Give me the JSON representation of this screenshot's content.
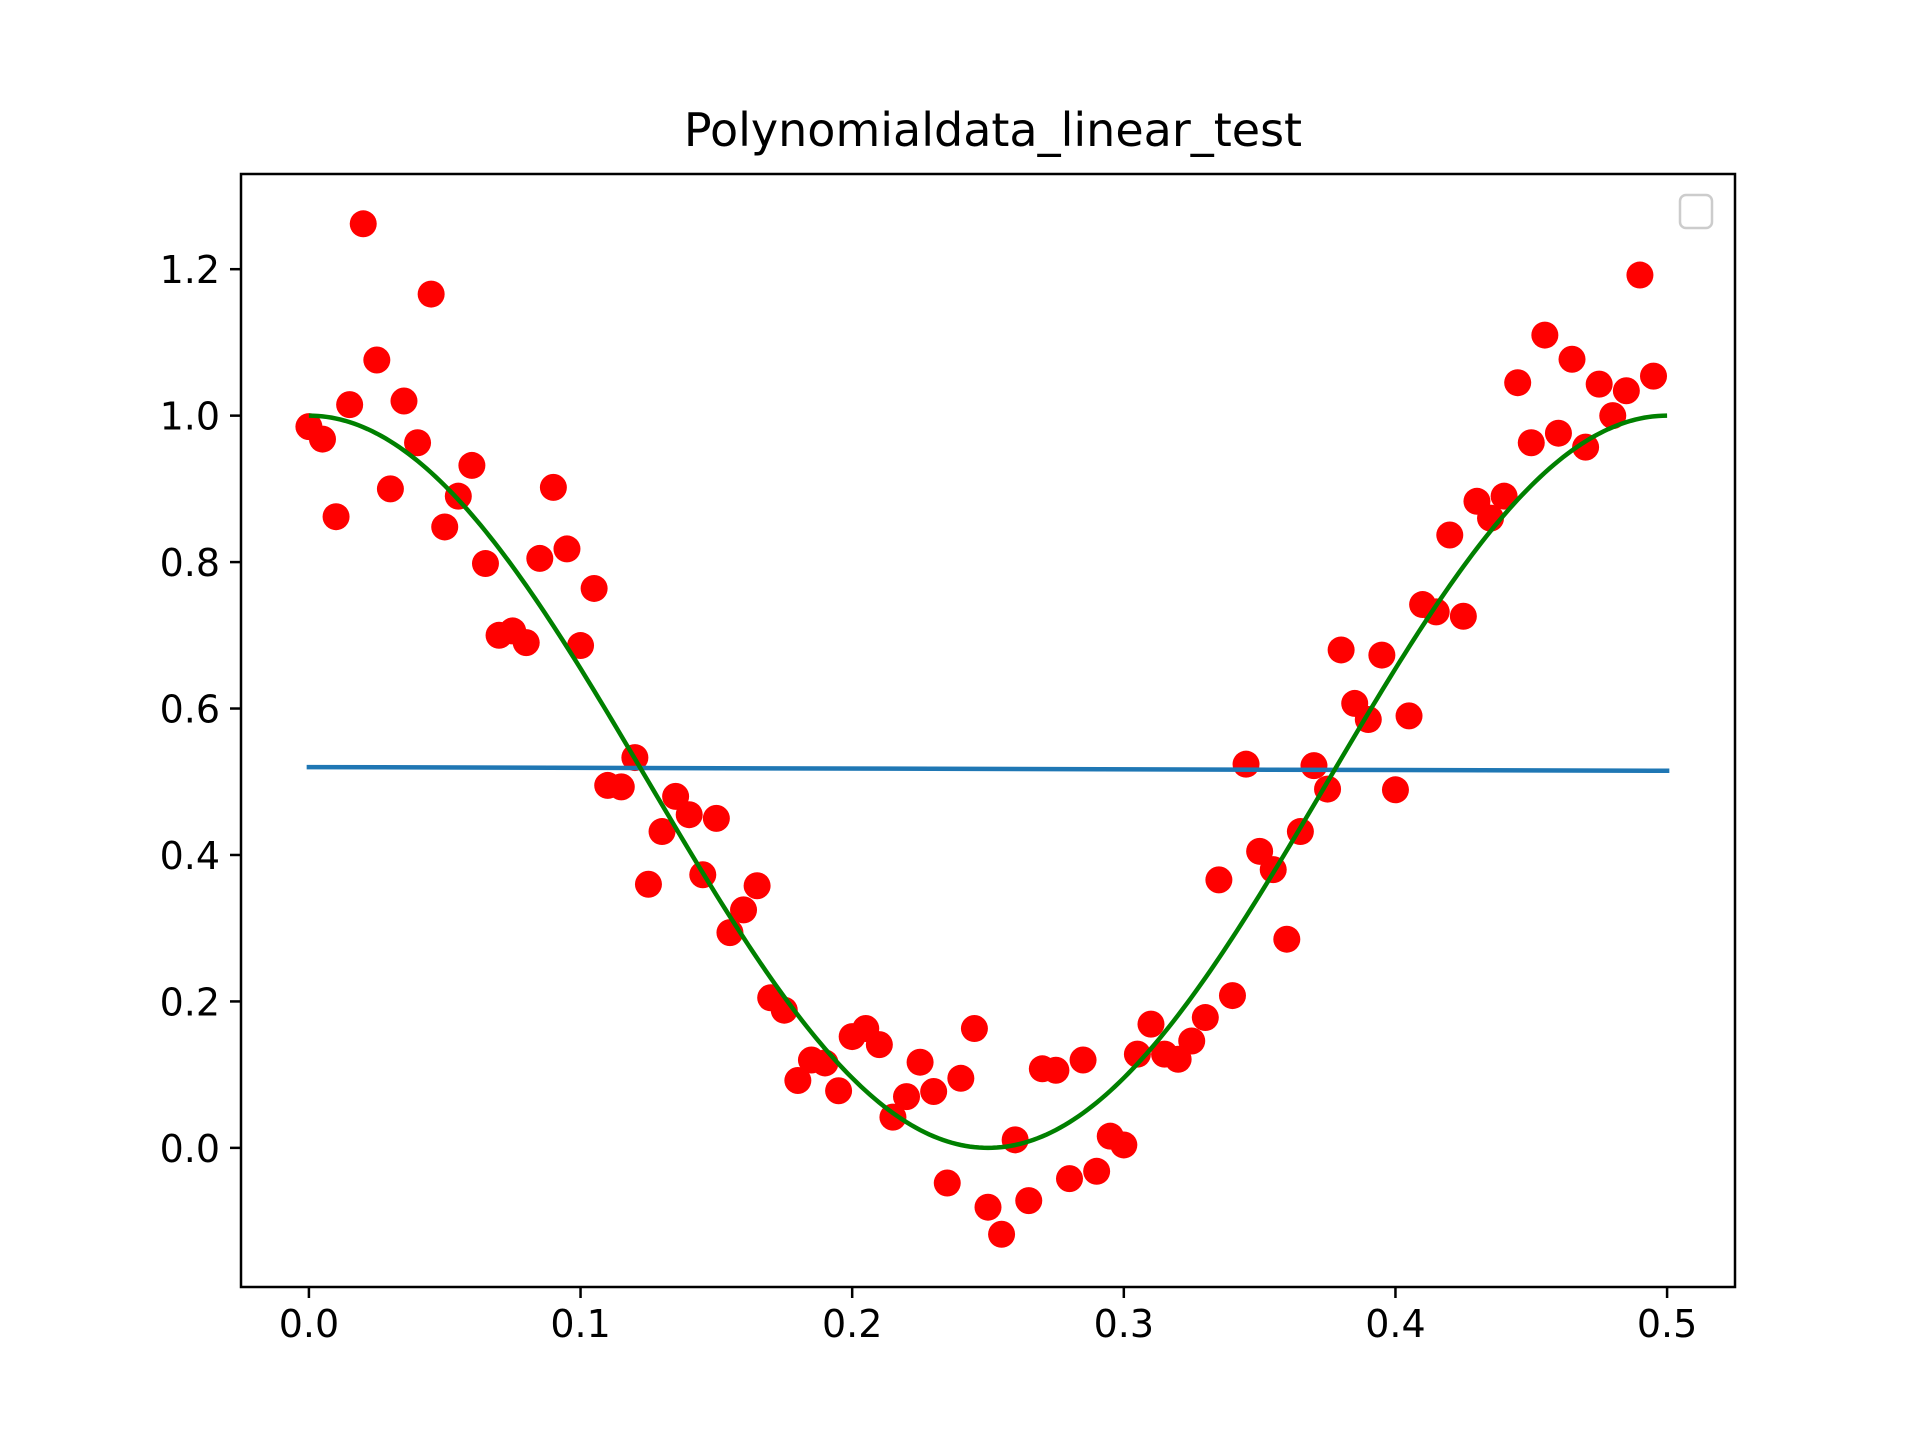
{
  "chart_data": {
    "type": "scatter",
    "title": "Polynomialdata_linear_test",
    "xlabel": "",
    "ylabel": "",
    "xlim": [
      -0.025,
      0.525
    ],
    "ylim": [
      -0.19,
      1.33
    ],
    "xticks": [
      0.0,
      0.1,
      0.2,
      0.3,
      0.4,
      0.5
    ],
    "xtick_labels": [
      "0.0",
      "0.1",
      "0.2",
      "0.3",
      "0.4",
      "0.5"
    ],
    "yticks": [
      0.0,
      0.2,
      0.4,
      0.6,
      0.8,
      1.0,
      1.2
    ],
    "ytick_labels": [
      "0.0",
      "0.2",
      "0.4",
      "0.6",
      "0.8",
      "1.0",
      "1.2"
    ],
    "grid": false,
    "legend": {
      "placement": "upper right",
      "entries": []
    },
    "colors": {
      "points": "#ff0000",
      "fit_line": "#1f77b4",
      "true_curve": "#008000",
      "axes": "#000000"
    },
    "series": [
      {
        "kind": "scatter",
        "color": "#ff0000",
        "points": [
          [
            0.0,
            0.985
          ],
          [
            0.005,
            0.968
          ],
          [
            0.01,
            0.862
          ],
          [
            0.015,
            1.015
          ],
          [
            0.02,
            1.262
          ],
          [
            0.025,
            1.076
          ],
          [
            0.03,
            0.9
          ],
          [
            0.035,
            1.02
          ],
          [
            0.04,
            0.963
          ],
          [
            0.045,
            1.166
          ],
          [
            0.05,
            0.848
          ],
          [
            0.055,
            0.89
          ],
          [
            0.06,
            0.932
          ],
          [
            0.065,
            0.798
          ],
          [
            0.07,
            0.7
          ],
          [
            0.075,
            0.706
          ],
          [
            0.08,
            0.69
          ],
          [
            0.085,
            0.805
          ],
          [
            0.09,
            0.902
          ],
          [
            0.095,
            0.818
          ],
          [
            0.1,
            0.686
          ],
          [
            0.105,
            0.764
          ],
          [
            0.11,
            0.495
          ],
          [
            0.115,
            0.493
          ],
          [
            0.12,
            0.533
          ],
          [
            0.125,
            0.36
          ],
          [
            0.13,
            0.432
          ],
          [
            0.135,
            0.48
          ],
          [
            0.14,
            0.455
          ],
          [
            0.145,
            0.373
          ],
          [
            0.15,
            0.45
          ],
          [
            0.155,
            0.294
          ],
          [
            0.16,
            0.325
          ],
          [
            0.165,
            0.358
          ],
          [
            0.17,
            0.205
          ],
          [
            0.175,
            0.188
          ],
          [
            0.18,
            0.092
          ],
          [
            0.185,
            0.12
          ],
          [
            0.19,
            0.116
          ],
          [
            0.195,
            0.078
          ],
          [
            0.2,
            0.152
          ],
          [
            0.205,
            0.163
          ],
          [
            0.21,
            0.141
          ],
          [
            0.215,
            0.042
          ],
          [
            0.22,
            0.07
          ],
          [
            0.225,
            0.117
          ],
          [
            0.23,
            0.077
          ],
          [
            0.235,
            -0.048
          ],
          [
            0.24,
            0.095
          ],
          [
            0.245,
            0.163
          ],
          [
            0.25,
            -0.081
          ],
          [
            0.255,
            -0.118
          ],
          [
            0.26,
            0.011
          ],
          [
            0.265,
            -0.072
          ],
          [
            0.27,
            0.108
          ],
          [
            0.275,
            0.106
          ],
          [
            0.28,
            -0.042
          ],
          [
            0.285,
            0.12
          ],
          [
            0.29,
            -0.032
          ],
          [
            0.295,
            0.016
          ],
          [
            0.3,
            0.004
          ],
          [
            0.305,
            0.128
          ],
          [
            0.31,
            0.169
          ],
          [
            0.315,
            0.128
          ],
          [
            0.32,
            0.121
          ],
          [
            0.325,
            0.146
          ],
          [
            0.33,
            0.178
          ],
          [
            0.335,
            0.366
          ],
          [
            0.34,
            0.208
          ],
          [
            0.345,
            0.524
          ],
          [
            0.35,
            0.405
          ],
          [
            0.355,
            0.38
          ],
          [
            0.36,
            0.285
          ],
          [
            0.365,
            0.432
          ],
          [
            0.37,
            0.522
          ],
          [
            0.375,
            0.49
          ],
          [
            0.38,
            0.68
          ],
          [
            0.385,
            0.607
          ],
          [
            0.39,
            0.585
          ],
          [
            0.395,
            0.673
          ],
          [
            0.4,
            0.489
          ],
          [
            0.405,
            0.59
          ],
          [
            0.41,
            0.742
          ],
          [
            0.415,
            0.732
          ],
          [
            0.42,
            0.837
          ],
          [
            0.425,
            0.726
          ],
          [
            0.43,
            0.883
          ],
          [
            0.435,
            0.86
          ],
          [
            0.44,
            0.89
          ],
          [
            0.445,
            1.045
          ],
          [
            0.45,
            0.963
          ],
          [
            0.455,
            1.11
          ],
          [
            0.46,
            0.976
          ],
          [
            0.465,
            1.077
          ],
          [
            0.47,
            0.957
          ],
          [
            0.475,
            1.043
          ],
          [
            0.48,
            1.0
          ],
          [
            0.485,
            1.034
          ],
          [
            0.49,
            1.192
          ],
          [
            0.495,
            1.054
          ]
        ]
      },
      {
        "kind": "line",
        "color": "#1f77b4",
        "x": [
          0.0,
          0.5
        ],
        "y": [
          0.52,
          0.515
        ]
      },
      {
        "kind": "line",
        "color": "#008000",
        "function": "0.5 + 0.5*cos(4*pi*x)",
        "x_range": [
          0.0,
          0.5
        ]
      }
    ]
  }
}
